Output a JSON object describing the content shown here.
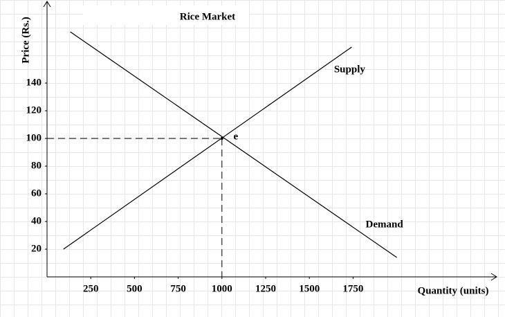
{
  "chart_data": {
    "type": "line",
    "title": "Rice Market",
    "x_label": "Quantity (units)",
    "y_label": "Price (Rs.)",
    "xlim": [
      0,
      2500
    ],
    "ylim": [
      0,
      200
    ],
    "xticks": [
      250,
      500,
      750,
      1000,
      1250,
      1500,
      1750
    ],
    "yticks": [
      20,
      40,
      60,
      80,
      100,
      120,
      140
    ],
    "series": [
      {
        "name": "Supply",
        "color": "#000000",
        "x": [
          94,
          1742
        ],
        "values": [
          20,
          166
        ]
      },
      {
        "name": "Demand",
        "color": "#000000",
        "x": [
          133,
          2000
        ],
        "values": [
          177,
          14
        ]
      }
    ],
    "equilibrium": {
      "label": "e",
      "x": 1000,
      "y": 100
    }
  }
}
